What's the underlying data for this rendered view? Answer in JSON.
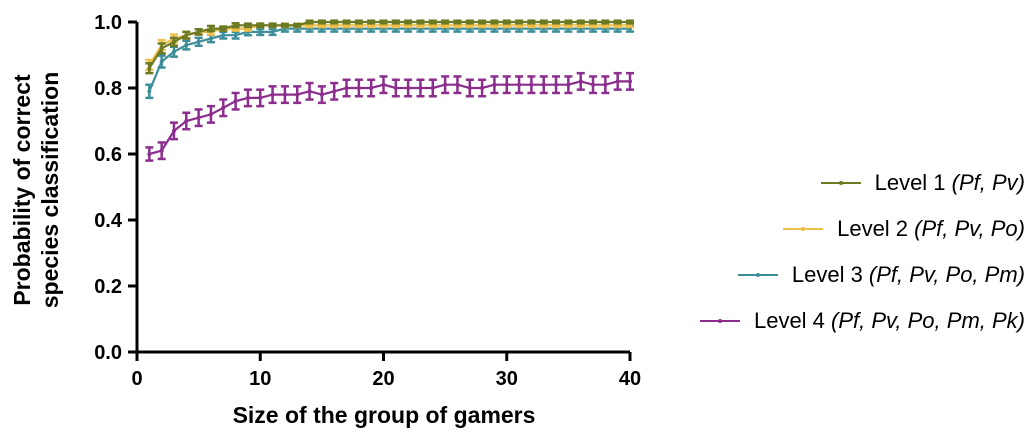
{
  "chart_data": {
    "type": "line",
    "xlabel": "Size of the group of gamers",
    "ylabel_lines": [
      "Probability of  correct",
      "species classification"
    ],
    "xlim": [
      0,
      40
    ],
    "ylim": [
      0,
      1
    ],
    "xticks": [
      "0",
      "10",
      "20",
      "30",
      "40"
    ],
    "yticks": [
      "0.0",
      "0.2",
      "0.4",
      "0.6",
      "0.8",
      "1.0"
    ],
    "grid": false,
    "legend_position": "right",
    "x": [
      1,
      2,
      3,
      4,
      5,
      6,
      7,
      8,
      9,
      10,
      11,
      12,
      13,
      14,
      15,
      16,
      17,
      18,
      19,
      20,
      21,
      22,
      23,
      24,
      25,
      26,
      27,
      28,
      29,
      30,
      31,
      32,
      33,
      34,
      35,
      36,
      37,
      38,
      39,
      40
    ],
    "series": [
      {
        "name": "Level 1",
        "name_suffix": " (Pf, Pv)",
        "color": "#6b7a23",
        "values": [
          0.86,
          0.92,
          0.94,
          0.96,
          0.97,
          0.98,
          0.98,
          0.99,
          0.99,
          0.99,
          0.99,
          0.99,
          0.99,
          1.0,
          1.0,
          1.0,
          1.0,
          1.0,
          1.0,
          1.0,
          1.0,
          1.0,
          1.0,
          1.0,
          1.0,
          1.0,
          1.0,
          1.0,
          1.0,
          1.0,
          1.0,
          1.0,
          1.0,
          1.0,
          1.0,
          1.0,
          1.0,
          1.0,
          1.0,
          1.0
        ],
        "errors": [
          0.015,
          0.015,
          0.012,
          0.01,
          0.008,
          0.008,
          0.006,
          0.006,
          0.005,
          0.005,
          0.005,
          0.004,
          0.004,
          0.004,
          0.004,
          0.004,
          0.004,
          0.004,
          0.004,
          0.004,
          0.004,
          0.004,
          0.004,
          0.004,
          0.004,
          0.004,
          0.004,
          0.004,
          0.004,
          0.004,
          0.004,
          0.004,
          0.004,
          0.004,
          0.004,
          0.004,
          0.004,
          0.004,
          0.004,
          0.004
        ]
      },
      {
        "name": "Level 2",
        "name_suffix": " (Pf, Pv, Po)",
        "color": "#efbf4a",
        "values": [
          0.87,
          0.93,
          0.95,
          0.96,
          0.97,
          0.97,
          0.98,
          0.98,
          0.98,
          0.99,
          0.99,
          0.99,
          0.99,
          0.99,
          0.99,
          0.99,
          0.99,
          0.99,
          0.99,
          0.99,
          0.99,
          0.99,
          0.99,
          0.99,
          0.99,
          0.99,
          0.99,
          0.99,
          0.99,
          0.99,
          0.99,
          0.99,
          0.99,
          0.99,
          0.99,
          0.99,
          0.99,
          0.99,
          0.99,
          0.99
        ],
        "errors": [
          0.015,
          0.015,
          0.012,
          0.01,
          0.008,
          0.008,
          0.006,
          0.006,
          0.006,
          0.005,
          0.005,
          0.005,
          0.005,
          0.005,
          0.005,
          0.005,
          0.005,
          0.005,
          0.005,
          0.005,
          0.005,
          0.005,
          0.005,
          0.005,
          0.005,
          0.005,
          0.005,
          0.005,
          0.005,
          0.005,
          0.005,
          0.005,
          0.005,
          0.005,
          0.005,
          0.005,
          0.005,
          0.005,
          0.005,
          0.005
        ]
      },
      {
        "name": "Level 3",
        "name_suffix": " (Pf, Pv, Po, Pm)",
        "color": "#3e8e9a",
        "values": [
          0.79,
          0.88,
          0.91,
          0.93,
          0.94,
          0.95,
          0.96,
          0.96,
          0.97,
          0.97,
          0.97,
          0.98,
          0.98,
          0.98,
          0.98,
          0.98,
          0.98,
          0.98,
          0.98,
          0.98,
          0.98,
          0.98,
          0.98,
          0.98,
          0.98,
          0.98,
          0.98,
          0.98,
          0.98,
          0.98,
          0.98,
          0.98,
          0.98,
          0.98,
          0.98,
          0.98,
          0.98,
          0.98,
          0.98,
          0.98
        ],
        "errors": [
          0.02,
          0.018,
          0.015,
          0.013,
          0.012,
          0.011,
          0.01,
          0.01,
          0.01,
          0.009,
          0.009,
          0.009,
          0.009,
          0.009,
          0.009,
          0.009,
          0.009,
          0.009,
          0.009,
          0.009,
          0.009,
          0.009,
          0.009,
          0.009,
          0.009,
          0.009,
          0.009,
          0.009,
          0.009,
          0.009,
          0.009,
          0.009,
          0.009,
          0.009,
          0.009,
          0.009,
          0.009,
          0.009,
          0.009,
          0.009
        ]
      },
      {
        "name": "Level 4",
        "name_suffix": " (Pf, Pv, Po, Pm, Pk)",
        "color": "#8b2e8e",
        "values": [
          0.6,
          0.61,
          0.67,
          0.7,
          0.71,
          0.72,
          0.74,
          0.76,
          0.77,
          0.77,
          0.78,
          0.78,
          0.78,
          0.79,
          0.78,
          0.79,
          0.8,
          0.8,
          0.8,
          0.81,
          0.8,
          0.8,
          0.8,
          0.8,
          0.81,
          0.81,
          0.8,
          0.8,
          0.81,
          0.81,
          0.81,
          0.81,
          0.81,
          0.81,
          0.81,
          0.82,
          0.81,
          0.81,
          0.82,
          0.82
        ],
        "errors": [
          0.02,
          0.025,
          0.025,
          0.025,
          0.025,
          0.025,
          0.025,
          0.025,
          0.025,
          0.025,
          0.025,
          0.025,
          0.025,
          0.025,
          0.025,
          0.025,
          0.025,
          0.025,
          0.025,
          0.025,
          0.025,
          0.025,
          0.025,
          0.025,
          0.025,
          0.025,
          0.025,
          0.025,
          0.025,
          0.025,
          0.025,
          0.025,
          0.025,
          0.025,
          0.025,
          0.025,
          0.025,
          0.025,
          0.025,
          0.025
        ]
      }
    ]
  }
}
